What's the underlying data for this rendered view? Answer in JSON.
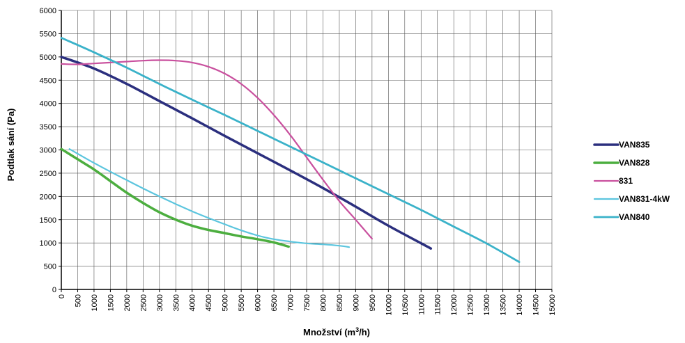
{
  "chart_data": {
    "type": "line",
    "xlabel": "Množství (m",
    "xlabel_sup": "3",
    "xlabel_end": "/h)",
    "ylabel": "Podtlak sání (Pa)",
    "xlim": [
      0,
      15000
    ],
    "ylim": [
      0,
      6000
    ],
    "x_ticks": [
      "0",
      "500",
      "1000",
      "1500",
      "2000",
      "2500",
      "3000",
      "3500",
      "4000",
      "4500",
      "5000",
      "5500",
      "6000",
      "6500",
      "7000",
      "7500",
      "8000",
      "8500",
      "9000",
      "9500",
      "10000",
      "10500",
      "11000",
      "11500",
      "12000",
      "12500",
      "13000",
      "13500",
      "14000",
      "14500",
      "15000"
    ],
    "y_ticks": [
      "0",
      "500",
      "1000",
      "1500",
      "2000",
      "2500",
      "3000",
      "3500",
      "4000",
      "4500",
      "5000",
      "5500",
      "6000"
    ],
    "grid": true,
    "legend": "right",
    "series": [
      {
        "name": "VAN835",
        "color": "#2b2f7e",
        "points": [
          [
            0,
            5000
          ],
          [
            1000,
            4750
          ],
          [
            2000,
            4420
          ],
          [
            3000,
            4050
          ],
          [
            4000,
            3680
          ],
          [
            5000,
            3300
          ],
          [
            6000,
            2930
          ],
          [
            7000,
            2560
          ],
          [
            8000,
            2180
          ],
          [
            9000,
            1780
          ],
          [
            10000,
            1370
          ],
          [
            11300,
            880
          ]
        ]
      },
      {
        "name": "VAN828",
        "color": "#4cae3f",
        "points": [
          [
            0,
            3020
          ],
          [
            500,
            2800
          ],
          [
            1000,
            2580
          ],
          [
            1500,
            2330
          ],
          [
            2000,
            2080
          ],
          [
            2500,
            1860
          ],
          [
            3000,
            1660
          ],
          [
            3500,
            1500
          ],
          [
            4000,
            1370
          ],
          [
            4500,
            1280
          ],
          [
            5000,
            1210
          ],
          [
            5500,
            1140
          ],
          [
            6000,
            1080
          ],
          [
            6500,
            1010
          ],
          [
            6950,
            920
          ]
        ]
      },
      {
        "name": "831",
        "color": "#c9509e",
        "points": [
          [
            0,
            4850
          ],
          [
            500,
            4840
          ],
          [
            1000,
            4860
          ],
          [
            1500,
            4880
          ],
          [
            2000,
            4900
          ],
          [
            2500,
            4920
          ],
          [
            3000,
            4930
          ],
          [
            3500,
            4920
          ],
          [
            4000,
            4880
          ],
          [
            4500,
            4790
          ],
          [
            5000,
            4640
          ],
          [
            5500,
            4420
          ],
          [
            6000,
            4120
          ],
          [
            6500,
            3750
          ],
          [
            7000,
            3320
          ],
          [
            7500,
            2840
          ],
          [
            8000,
            2360
          ],
          [
            8500,
            1900
          ],
          [
            9000,
            1500
          ],
          [
            9500,
            1090
          ]
        ]
      },
      {
        "name": "VAN831-4kW",
        "color": "#5bc5de",
        "points": [
          [
            250,
            3020
          ],
          [
            1000,
            2720
          ],
          [
            2000,
            2350
          ],
          [
            3000,
            2000
          ],
          [
            4000,
            1680
          ],
          [
            5000,
            1400
          ],
          [
            5500,
            1270
          ],
          [
            6000,
            1160
          ],
          [
            6500,
            1080
          ],
          [
            7000,
            1030
          ],
          [
            7500,
            990
          ],
          [
            8000,
            970
          ],
          [
            8500,
            940
          ],
          [
            8800,
            910
          ]
        ]
      },
      {
        "name": "VAN840",
        "color": "#3ab2c9",
        "points": [
          [
            0,
            5410
          ],
          [
            1000,
            5100
          ],
          [
            2000,
            4770
          ],
          [
            3000,
            4420
          ],
          [
            4000,
            4080
          ],
          [
            5000,
            3750
          ],
          [
            6000,
            3410
          ],
          [
            7000,
            3070
          ],
          [
            8000,
            2730
          ],
          [
            9000,
            2390
          ],
          [
            10000,
            2050
          ],
          [
            11000,
            1710
          ],
          [
            12000,
            1350
          ],
          [
            13000,
            990
          ],
          [
            14000,
            590
          ]
        ]
      }
    ]
  }
}
